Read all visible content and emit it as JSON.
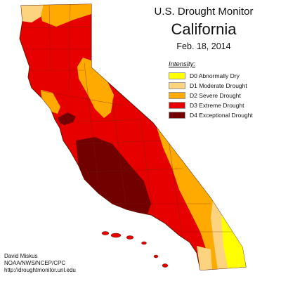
{
  "title": {
    "line1": "U.S. Drought Monitor",
    "line2": "California",
    "date": "Feb. 18, 2014"
  },
  "legend": {
    "title": "Intensity:",
    "items": [
      {
        "label": "D0 Abnormally Dry",
        "color": "#FFFF00"
      },
      {
        "label": "D1 Moderate Drought",
        "color": "#FCD37F"
      },
      {
        "label": "D2 Severe Drought",
        "color": "#FFAA00"
      },
      {
        "label": "D3 Extreme Drought",
        "color": "#E60000"
      },
      {
        "label": "D4 Exceptional Drought",
        "color": "#730000"
      }
    ]
  },
  "credits": {
    "author": "David Miskus",
    "agency": "NOAA/NWS/NCEP/CPC",
    "url": "http://droughtmonitor.unl.edu"
  },
  "map": {
    "region": "California",
    "colors": {
      "d0": "#FFFF00",
      "d1": "#FCD37F",
      "d2": "#FFAA00",
      "d3": "#E60000",
      "d4": "#730000",
      "border": "#5a1a00",
      "county_lines": "#6e2400"
    }
  }
}
